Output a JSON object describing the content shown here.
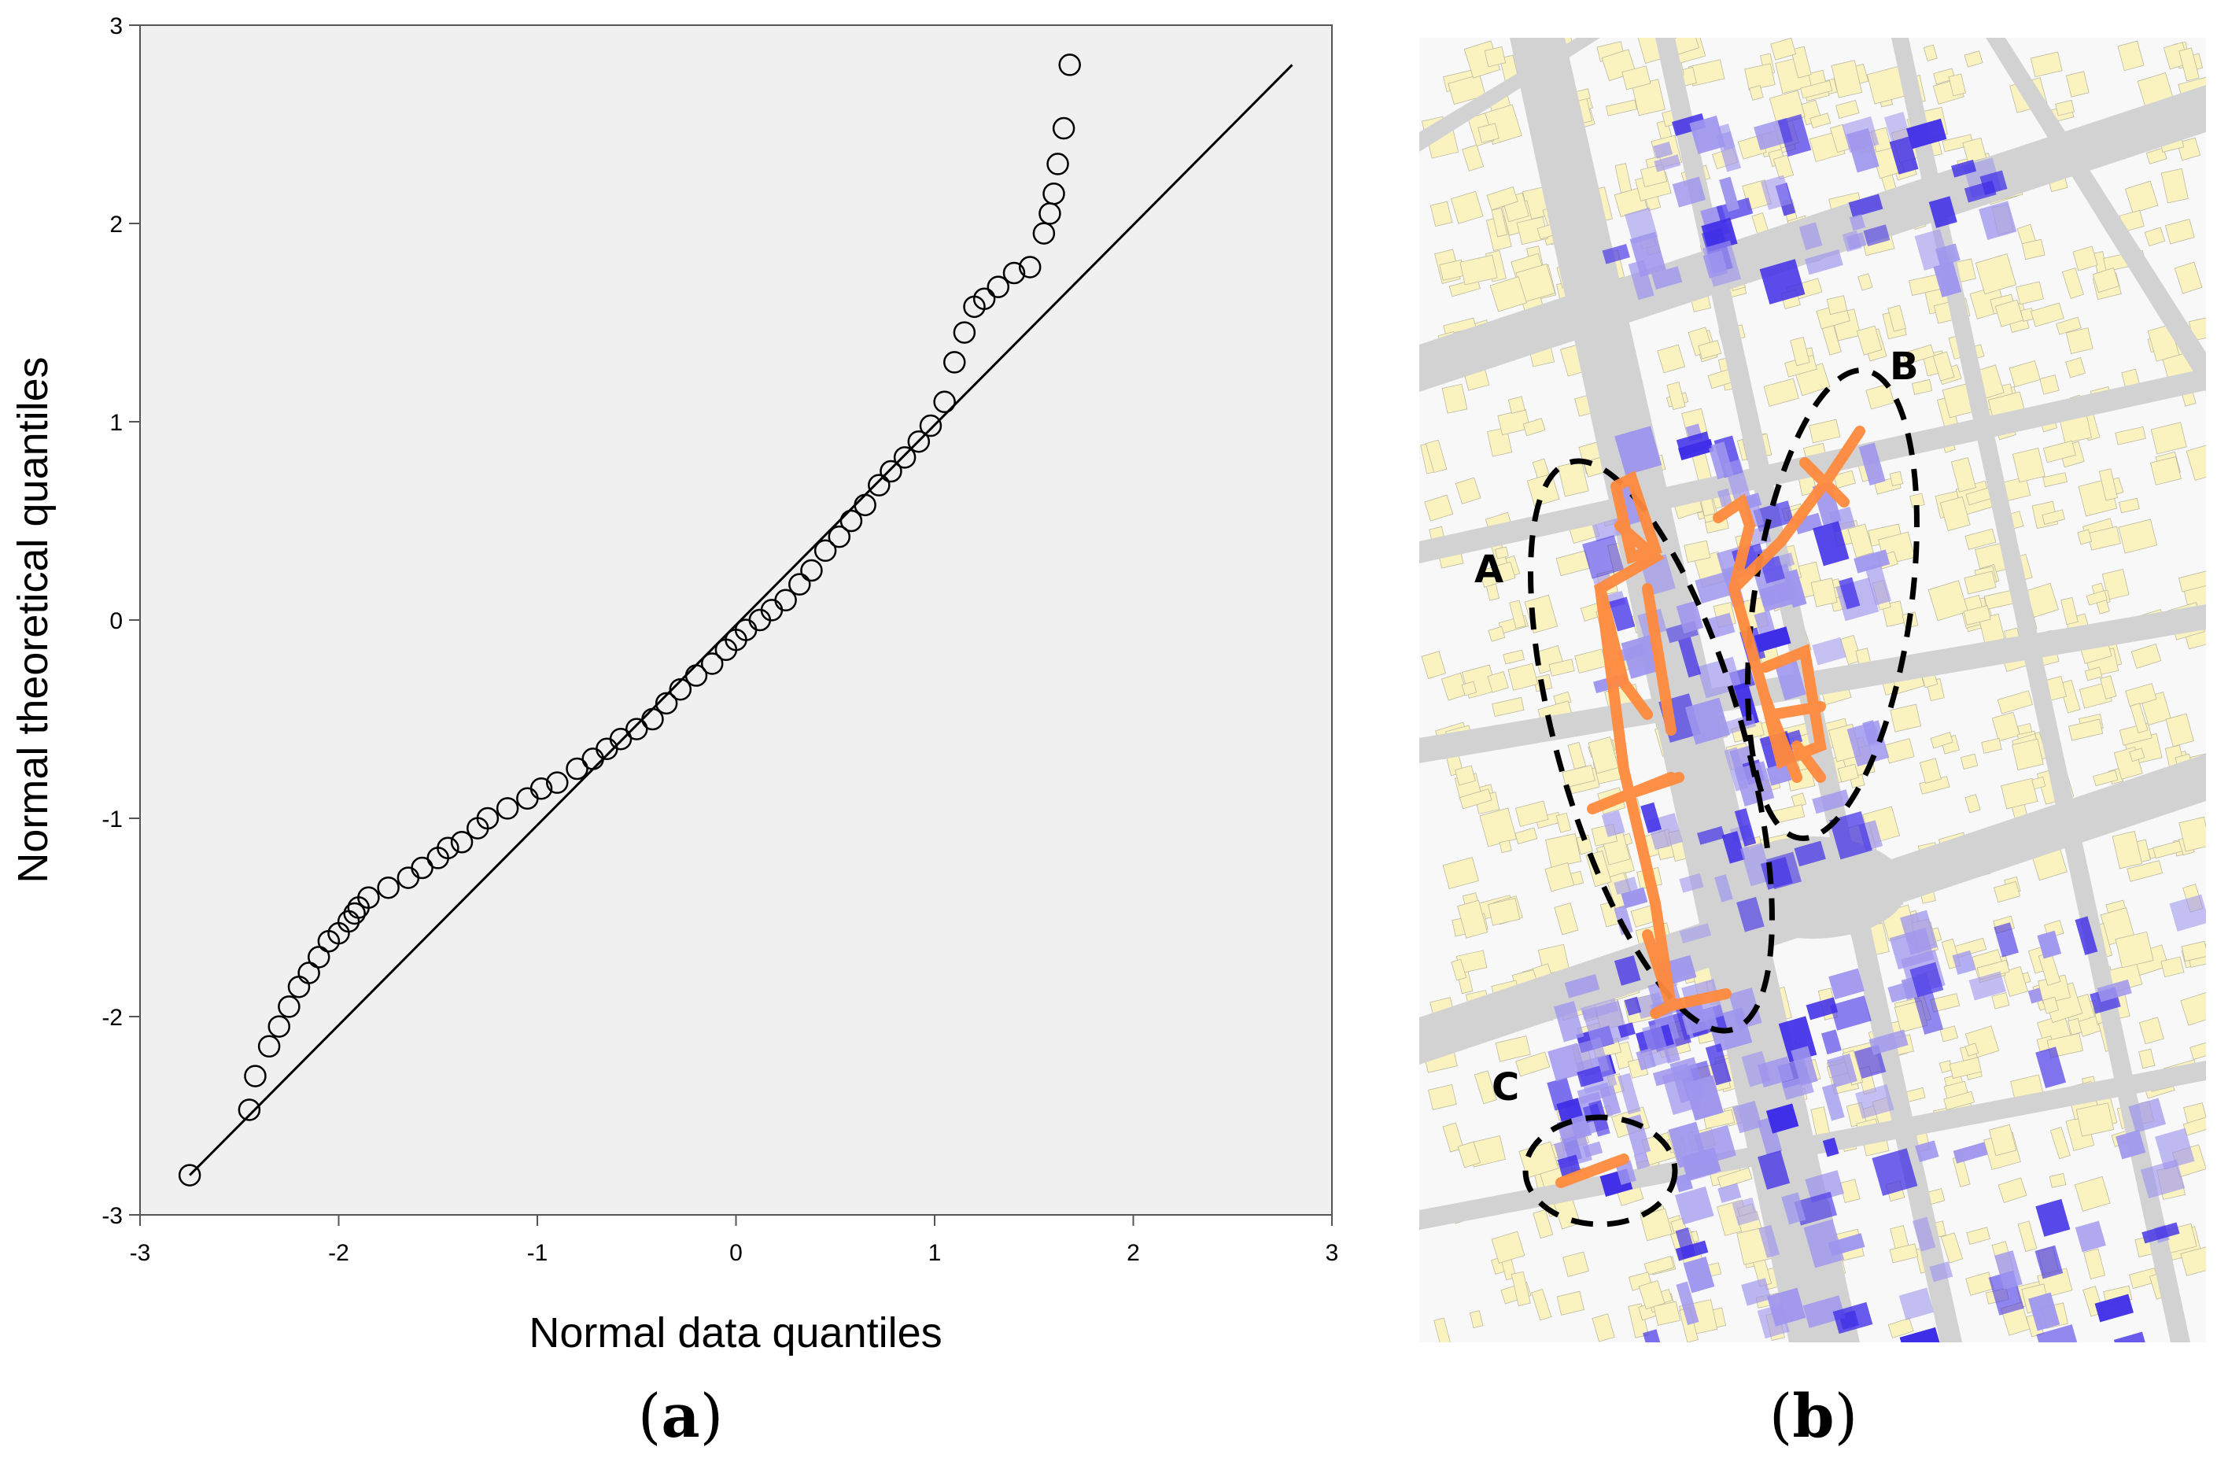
{
  "chart_data": {
    "type": "scatter",
    "title": "",
    "xlabel": "Normal data quantiles",
    "ylabel": "Normal theoretical quantiles",
    "xlim": [
      -3,
      3
    ],
    "ylim": [
      -3,
      3
    ],
    "xticks": [
      "-3",
      "-2",
      "-1",
      "0",
      "1",
      "2",
      "3"
    ],
    "yticks": [
      "-3",
      "-2",
      "-1",
      "0",
      "1",
      "2",
      "3"
    ],
    "reference_line": {
      "x": [
        -2.75,
        2.8
      ],
      "y": [
        -2.8,
        2.8
      ]
    },
    "series": [
      {
        "name": "quantiles",
        "x": [
          -2.75,
          -2.45,
          -2.42,
          -2.35,
          -2.3,
          -2.25,
          -2.2,
          -2.15,
          -2.1,
          -2.05,
          -2.0,
          -1.95,
          -1.92,
          -1.9,
          -1.85,
          -1.75,
          -1.65,
          -1.58,
          -1.5,
          -1.45,
          -1.38,
          -1.3,
          -1.25,
          -1.15,
          -1.05,
          -0.98,
          -0.9,
          -0.8,
          -0.72,
          -0.65,
          -0.58,
          -0.5,
          -0.42,
          -0.35,
          -0.28,
          -0.2,
          -0.12,
          -0.05,
          0.0,
          0.05,
          0.12,
          0.18,
          0.25,
          0.32,
          0.38,
          0.45,
          0.52,
          0.58,
          0.65,
          0.72,
          0.78,
          0.85,
          0.92,
          0.98,
          1.05,
          1.1,
          1.15,
          1.2,
          1.25,
          1.32,
          1.4,
          1.48,
          1.55,
          1.58,
          1.6,
          1.62,
          1.65,
          1.68
        ],
        "y": [
          -2.8,
          -2.47,
          -2.3,
          -2.15,
          -2.05,
          -1.95,
          -1.85,
          -1.78,
          -1.7,
          -1.62,
          -1.58,
          -1.52,
          -1.48,
          -1.45,
          -1.4,
          -1.35,
          -1.3,
          -1.25,
          -1.2,
          -1.15,
          -1.12,
          -1.05,
          -1.0,
          -0.95,
          -0.9,
          -0.85,
          -0.82,
          -0.75,
          -0.7,
          -0.65,
          -0.6,
          -0.55,
          -0.5,
          -0.42,
          -0.35,
          -0.28,
          -0.22,
          -0.15,
          -0.1,
          -0.05,
          0.0,
          0.05,
          0.1,
          0.18,
          0.25,
          0.35,
          0.42,
          0.5,
          0.58,
          0.68,
          0.75,
          0.82,
          0.9,
          0.98,
          1.1,
          1.3,
          1.45,
          1.58,
          1.62,
          1.68,
          1.75,
          1.78,
          1.95,
          2.05,
          2.15,
          2.3,
          2.48,
          2.8
        ]
      }
    ]
  },
  "map": {
    "labels": [
      "A",
      "B",
      "C"
    ],
    "road_color": "#cfcfcf",
    "building_color": "#faf3c0",
    "dark_purple": "#3f2ee8",
    "light_purple": "#9e95ee",
    "highlight_color": "#ff8a3d"
  },
  "panels": {
    "a": "a",
    "b": "b"
  }
}
